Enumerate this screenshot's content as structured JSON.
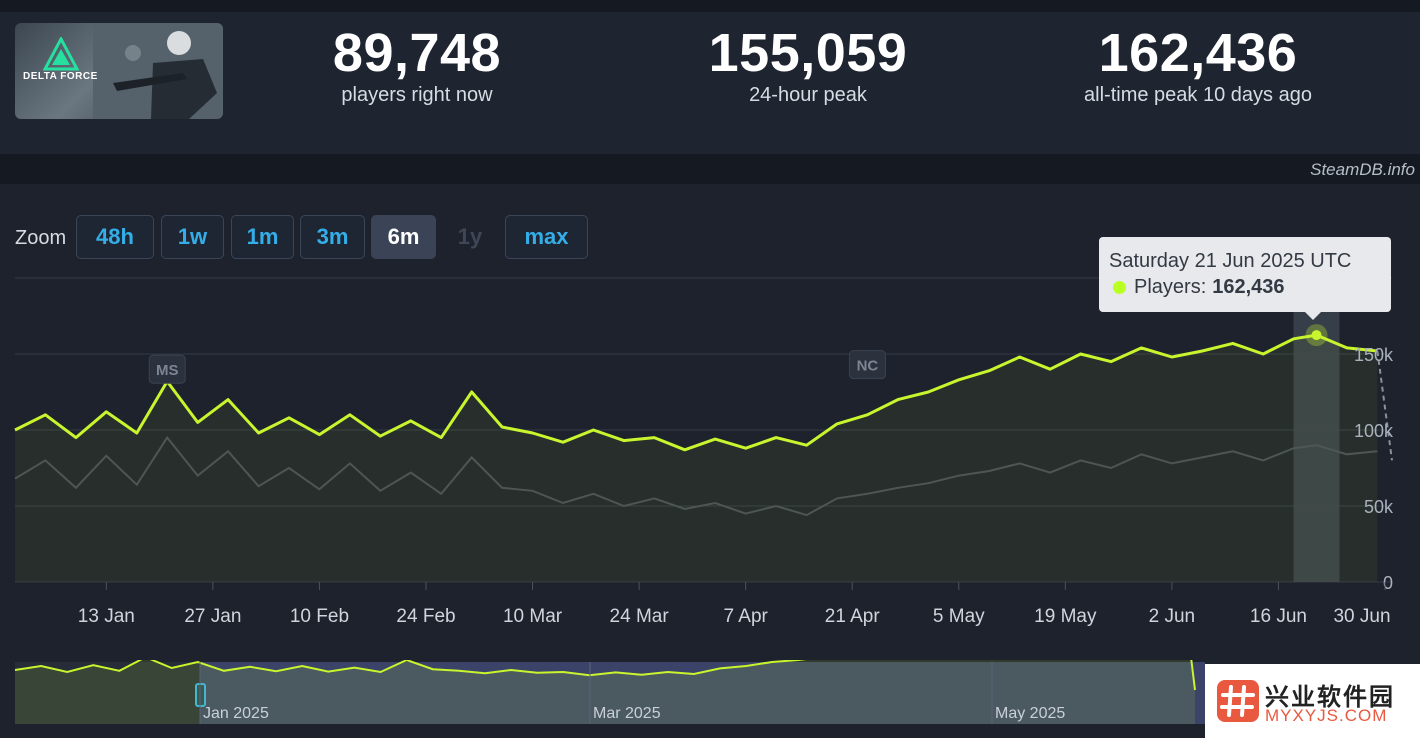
{
  "game": {
    "logo_text": "DELTA FORCE"
  },
  "stats": [
    {
      "value": "89,748",
      "label": "players right now"
    },
    {
      "value": "155,059",
      "label": "24-hour peak"
    },
    {
      "value": "162,436",
      "label": "all-time peak 10 days ago"
    }
  ],
  "credit": "SteamDB.info",
  "zoom": {
    "label": "Zoom",
    "buttons": [
      {
        "label": "48h",
        "state": "normal"
      },
      {
        "label": "1w",
        "state": "normal"
      },
      {
        "label": "1m",
        "state": "normal"
      },
      {
        "label": "3m",
        "state": "normal"
      },
      {
        "label": "6m",
        "state": "active"
      },
      {
        "label": "1y",
        "state": "disabled"
      },
      {
        "label": "max",
        "state": "normal"
      }
    ]
  },
  "tooltip": {
    "date": "Saturday 21 Jun 2025 UTC",
    "series_label": "Players:",
    "value": "162,436"
  },
  "colors": {
    "players_line": "#c8f52d",
    "secondary_line": "#474d57",
    "grid": "#353b47",
    "tooltip_dot": "#b9ff1f",
    "accent": "#34aee8"
  },
  "chart_data": {
    "type": "line",
    "x_tick_labels": [
      "13 Jan",
      "27 Jan",
      "10 Feb",
      "24 Feb",
      "10 Mar",
      "24 Mar",
      "7 Apr",
      "21 Apr",
      "5 May",
      "19 May",
      "2 Jun",
      "16 Jun",
      "30 Jun"
    ],
    "y_tick_labels": [
      "0",
      "50k",
      "100k",
      "150k"
    ],
    "ylim": [
      0,
      200000
    ],
    "grid": true,
    "annotations": [
      "MS",
      "NC"
    ],
    "highlight": {
      "date": "21 Jun 2025",
      "value": 162436
    },
    "series": [
      {
        "name": "Players",
        "x": [
          "1 Jan",
          "5 Jan",
          "9 Jan",
          "13 Jan",
          "17 Jan",
          "21 Jan",
          "25 Jan",
          "29 Jan",
          "2 Feb",
          "6 Feb",
          "10 Feb",
          "14 Feb",
          "18 Feb",
          "22 Feb",
          "26 Feb",
          "2 Mar",
          "6 Mar",
          "10 Mar",
          "14 Mar",
          "18 Mar",
          "22 Mar",
          "26 Mar",
          "30 Mar",
          "3 Apr",
          "7 Apr",
          "11 Apr",
          "15 Apr",
          "19 Apr",
          "23 Apr",
          "27 Apr",
          "1 May",
          "5 May",
          "9 May",
          "13 May",
          "17 May",
          "21 May",
          "25 May",
          "29 May",
          "2 Jun",
          "6 Jun",
          "10 Jun",
          "14 Jun",
          "18 Jun",
          "21 Jun",
          "25 Jun",
          "29 Jun"
        ],
        "values": [
          100000,
          110000,
          95000,
          112000,
          98000,
          132000,
          105000,
          120000,
          98000,
          108000,
          97000,
          110000,
          96000,
          106000,
          95000,
          125000,
          102000,
          98000,
          92000,
          100000,
          93000,
          95000,
          87000,
          94000,
          88000,
          95000,
          90000,
          104000,
          110000,
          120000,
          125000,
          133000,
          139000,
          148000,
          140000,
          150000,
          145000,
          154000,
          148000,
          152000,
          157000,
          150000,
          160000,
          162436,
          154000,
          152000
        ]
      },
      {
        "name": "",
        "values": [
          68000,
          80000,
          62000,
          83000,
          64000,
          95000,
          70000,
          86000,
          63000,
          75000,
          61000,
          78000,
          60000,
          72000,
          58000,
          82000,
          62000,
          60000,
          52000,
          58000,
          50000,
          55000,
          48000,
          52000,
          45000,
          50000,
          44000,
          55000,
          58000,
          62000,
          65000,
          70000,
          73000,
          78000,
          72000,
          80000,
          75000,
          84000,
          78000,
          82000,
          86000,
          80000,
          88000,
          90000,
          84000,
          86000
        ]
      }
    ]
  },
  "navigator": {
    "labels": [
      "Jan 2025",
      "Mar 2025",
      "May 2025"
    ]
  },
  "watermark": {
    "title": "兴业软件园",
    "subtitle": "MYXYJS.COM"
  }
}
